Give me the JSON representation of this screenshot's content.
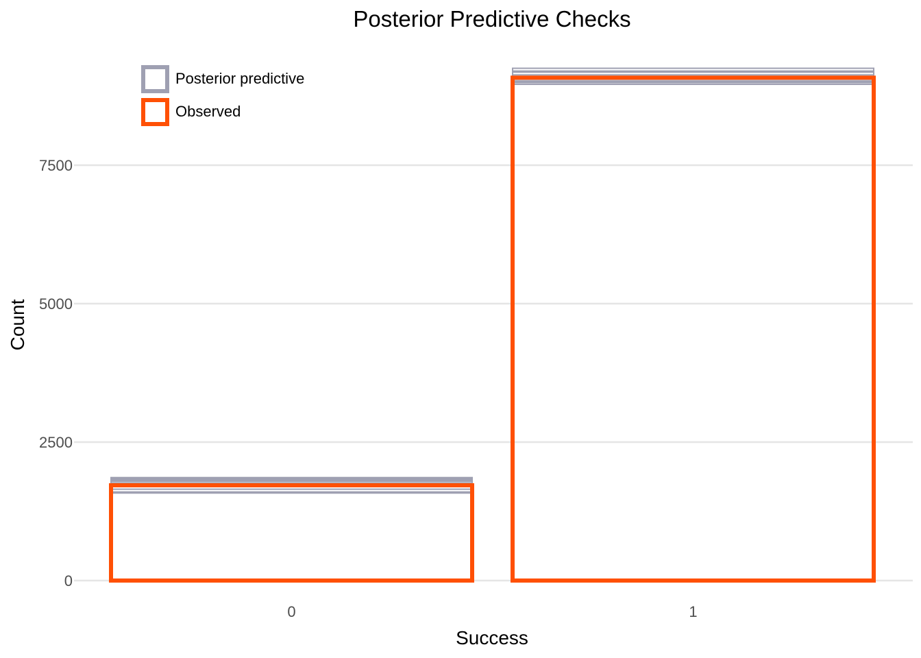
{
  "chart_data": {
    "type": "bar",
    "title": "Posterior Predictive Checks",
    "xlabel": "Success",
    "ylabel": "Count",
    "categories": [
      "0",
      "1"
    ],
    "ylim": [
      -500,
      9400
    ],
    "yticks": [
      0,
      2500,
      5000,
      7500
    ],
    "ytick_labels": [
      "0",
      "2500",
      "5000",
      "7500"
    ],
    "grid": "horizontal",
    "legend": {
      "placement": "top-left",
      "entries": [
        {
          "label": "Posterior predictive",
          "color": "#9fa0b2"
        },
        {
          "label": "Observed",
          "color": "#ff5005"
        }
      ]
    },
    "series": [
      {
        "name": "Observed",
        "color": "#ff5005",
        "values": [
          1720,
          9080
        ]
      },
      {
        "name": "Posterior predictive",
        "color": "#9fa0b2",
        "draws": [
          [
            1840,
            8960
          ],
          [
            1860,
            8990
          ],
          [
            1820,
            9020
          ],
          [
            1800,
            9000
          ],
          [
            1790,
            9050
          ],
          [
            1760,
            9100
          ],
          [
            1700,
            9130
          ],
          [
            1650,
            9180
          ],
          [
            1600,
            9250
          ],
          [
            1580,
            9200
          ]
        ]
      }
    ]
  }
}
